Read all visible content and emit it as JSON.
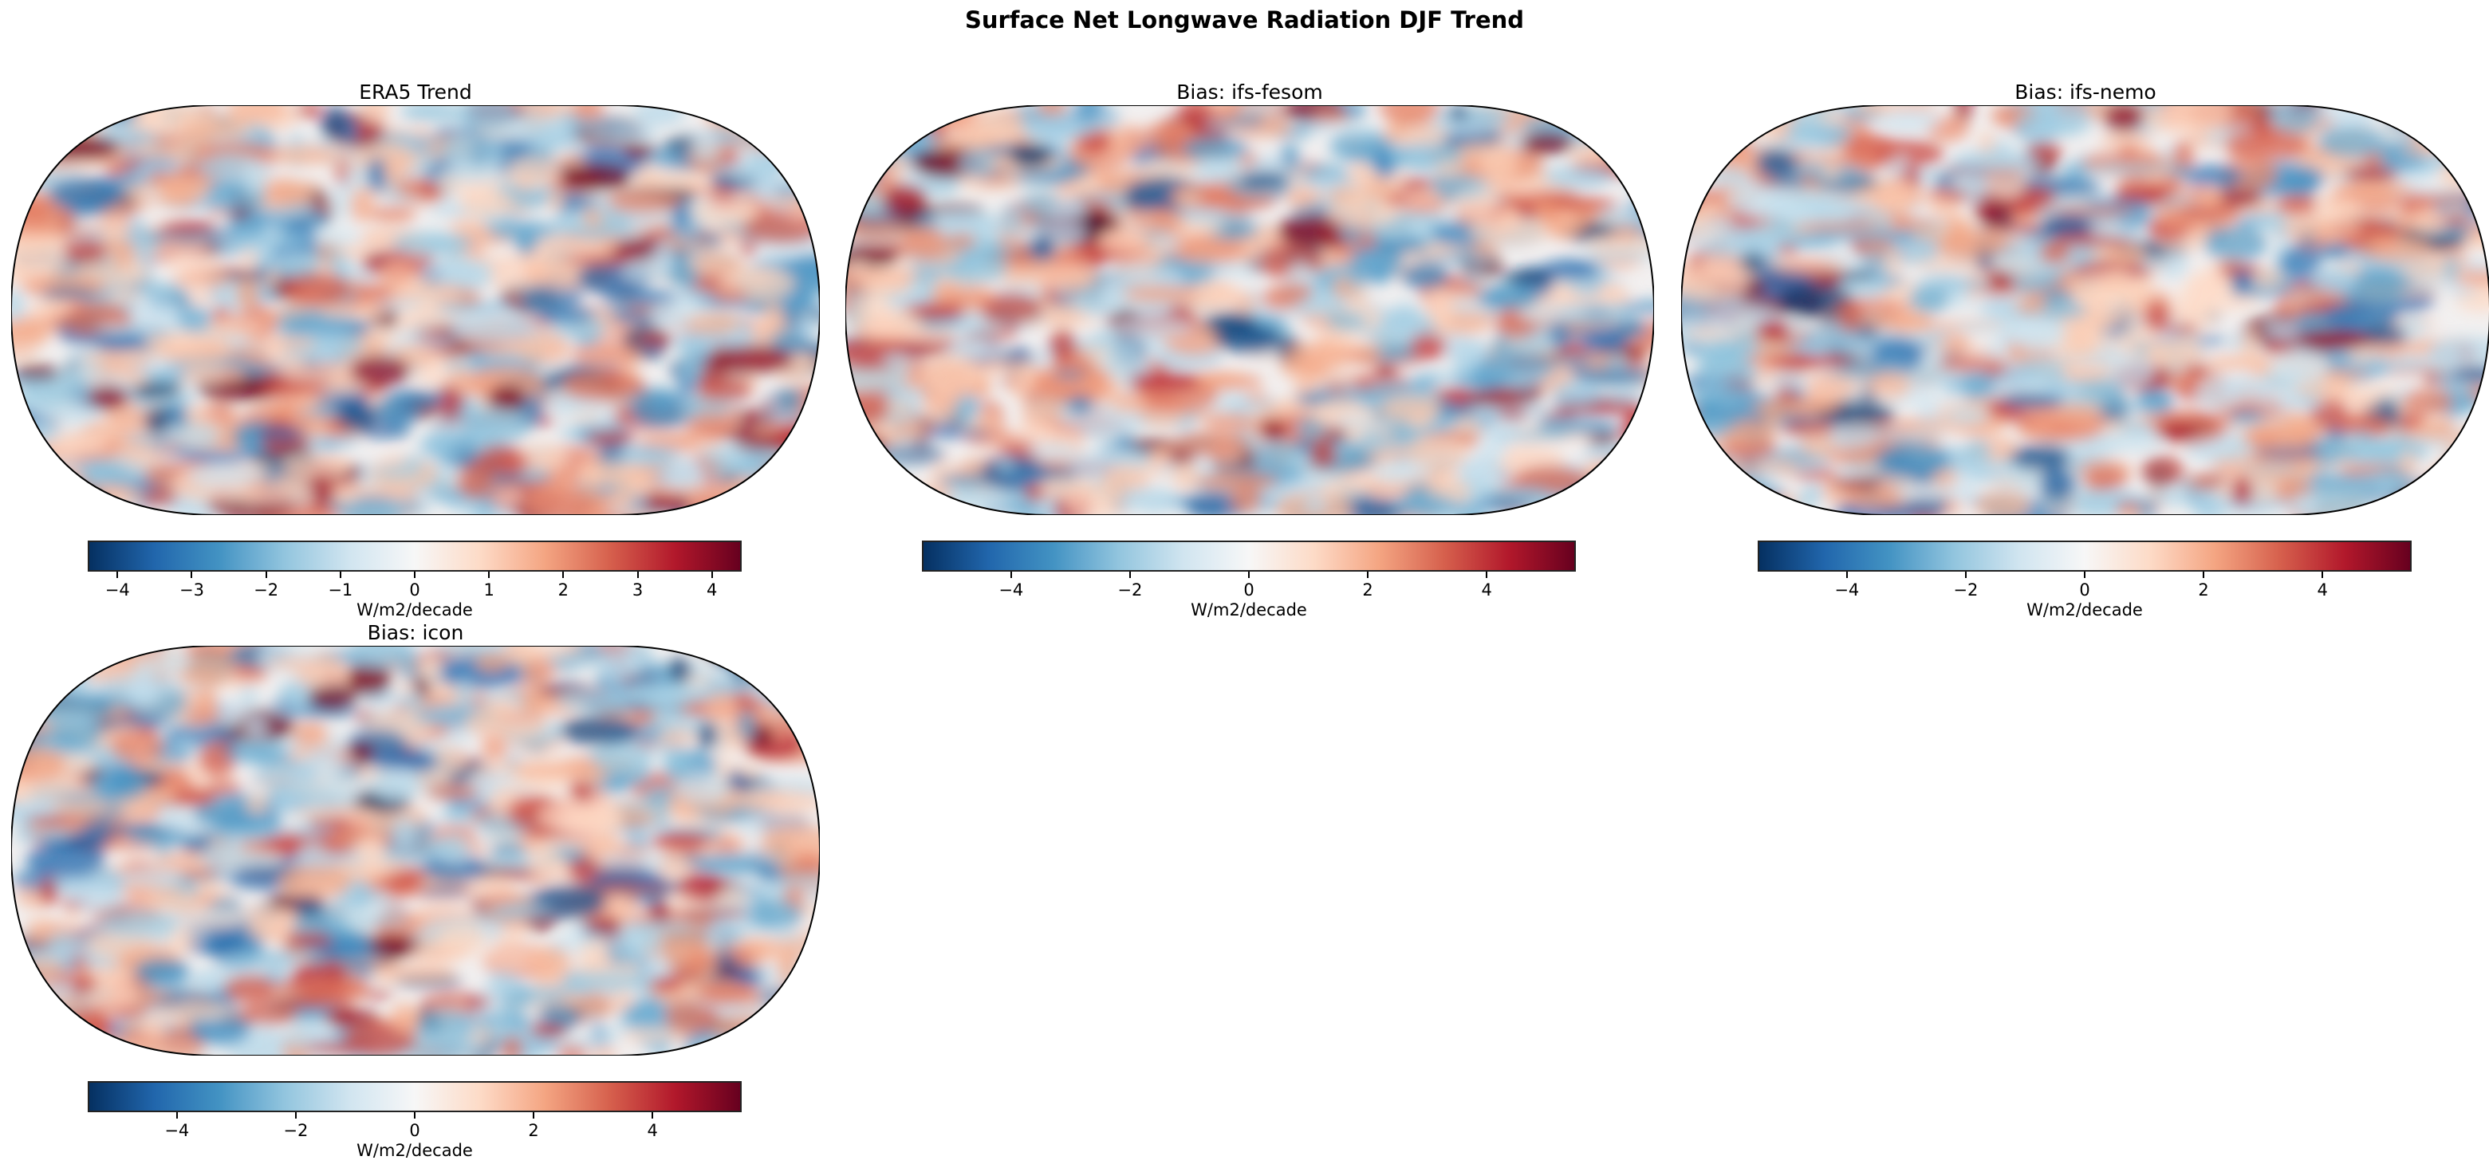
{
  "title": "Surface Net Longwave Radiation DJF Trend",
  "colormap": "RdBu_r",
  "panels": [
    {
      "title": "ERA5 Trend",
      "colorbar": {
        "label": "W/m2/decade",
        "range": [
          -4.4,
          4.4
        ],
        "ticks": [
          "−4",
          "−3",
          "−2",
          "−1",
          "0",
          "1",
          "2",
          "3",
          "4"
        ],
        "tick_values": [
          -4,
          -3,
          -2,
          -1,
          0,
          1,
          2,
          3,
          4
        ]
      }
    },
    {
      "title": "Bias: ifs-fesom",
      "colorbar": {
        "label": "W/m2/decade",
        "range": [
          -5.5,
          5.5
        ],
        "ticks": [
          "−4",
          "−2",
          "0",
          "2",
          "4"
        ],
        "tick_values": [
          -4,
          -2,
          0,
          2,
          4
        ]
      }
    },
    {
      "title": "Bias: ifs-nemo",
      "colorbar": {
        "label": "W/m2/decade",
        "range": [
          -5.5,
          5.5
        ],
        "ticks": [
          "−4",
          "−2",
          "0",
          "2",
          "4"
        ],
        "tick_values": [
          -4,
          -2,
          0,
          2,
          4
        ]
      }
    },
    {
      "title": "Bias: icon",
      "colorbar": {
        "label": "W/m2/decade",
        "range": [
          -5.5,
          5.5
        ],
        "ticks": [
          "−4",
          "−2",
          "0",
          "2",
          "4"
        ],
        "tick_values": [
          -4,
          -2,
          0,
          2,
          4
        ]
      }
    }
  ]
}
